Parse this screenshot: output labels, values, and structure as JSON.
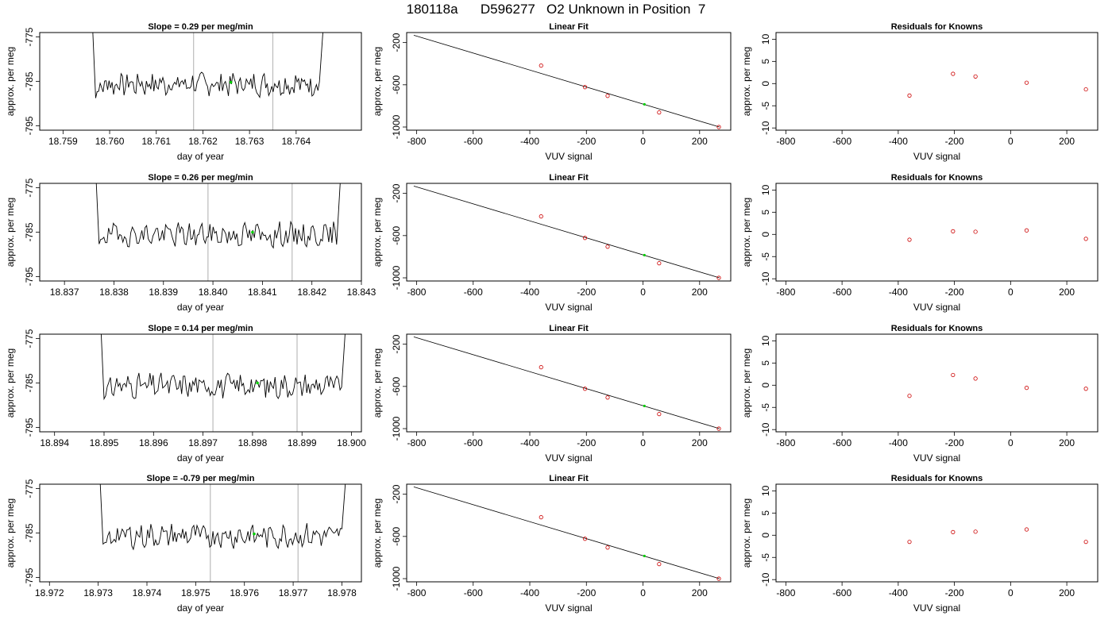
{
  "page_title": "180118a      D596277   O2 Unknown in Position  7",
  "colors": {
    "trace": "#000000",
    "known_marker": "#cc0000",
    "unknown_marker": "#00cc00",
    "marker_line": "#bbbbbb",
    "frame": "#000000"
  },
  "chart_data": [
    {
      "type": "line",
      "title": "Slope =  0.29  per meg/min",
      "xlabel": "day of year",
      "ylabel": "approx. per meg",
      "xlim": [
        18.7585,
        18.7654
      ],
      "ylim": [
        -796,
        -774
      ],
      "xticks": [
        "18.759",
        "18.760",
        "18.761",
        "18.762",
        "18.763",
        "18.764"
      ],
      "yticks": [
        "-775",
        "-785",
        "-795"
      ],
      "vlines": [
        18.7618,
        18.7635
      ],
      "trace_x_range": [
        18.7597,
        18.7645
      ],
      "trace_base": -785.6,
      "unknown_point": {
        "x": 18.7626,
        "y": -785.2
      },
      "seed": 7
    },
    {
      "type": "line",
      "title": "Linear Fit",
      "xlabel": "VUV signal",
      "ylabel": "approx. per meg",
      "xlim": [
        -835,
        310
      ],
      "ylim": [
        -1030,
        -105
      ],
      "xticks": [
        "-800",
        "-600",
        "-400",
        "-200",
        "0",
        "200"
      ],
      "yticks": [
        "-200",
        "-600",
        "-1000"
      ],
      "fit_line": {
        "x": [
          -810,
          270
        ],
        "y": [
          -130,
          -1000
        ]
      },
      "knowns": {
        "x": [
          -360,
          -205,
          -125,
          57,
          268
        ],
        "y": [
          -418,
          -622,
          -705,
          -862,
          -1000
        ]
      },
      "unknown": {
        "x": 5,
        "y": -785
      }
    },
    {
      "type": "scatter",
      "title": "Residuals for Knowns",
      "xlabel": "VUV signal",
      "ylabel": "approx. per meg",
      "xlim": [
        -835,
        310
      ],
      "ylim": [
        -10.5,
        11.5
      ],
      "xticks": [
        "-800",
        "-600",
        "-400",
        "-200",
        "0",
        "200"
      ],
      "yticks": [
        "10",
        "5",
        "0",
        "-5",
        "-10"
      ],
      "points": {
        "x": [
          -360,
          -205,
          -125,
          57,
          268
        ],
        "y": [
          -2.7,
          2.2,
          1.6,
          0.2,
          -1.3
        ]
      }
    },
    {
      "type": "line",
      "title": "Slope =  0.26  per meg/min",
      "xlabel": "day of year",
      "ylabel": "approx. per meg",
      "xlim": [
        18.8365,
        18.843
      ],
      "ylim": [
        -796,
        -774
      ],
      "xticks": [
        "18.837",
        "18.838",
        "18.839",
        "18.840",
        "18.841",
        "18.842",
        "18.843"
      ],
      "yticks": [
        "-775",
        "-785",
        "-795"
      ],
      "vlines": [
        18.8399,
        18.8416
      ],
      "trace_x_range": [
        18.8377,
        18.8425
      ],
      "trace_base": -785.6,
      "unknown_point": {
        "x": 18.8408,
        "y": -785.0
      },
      "seed": 19
    },
    {
      "type": "line",
      "title": "Linear Fit",
      "xlabel": "VUV signal",
      "ylabel": "approx. per meg",
      "xlim": [
        -835,
        310
      ],
      "ylim": [
        -1030,
        -105
      ],
      "xticks": [
        "-800",
        "-600",
        "-400",
        "-200",
        "0",
        "200"
      ],
      "yticks": [
        "-200",
        "-600",
        "-1000"
      ],
      "fit_line": {
        "x": [
          -810,
          270
        ],
        "y": [
          -130,
          -1000
        ]
      },
      "knowns": {
        "x": [
          -360,
          -205,
          -125,
          57,
          268
        ],
        "y": [
          -418,
          -622,
          -705,
          -862,
          -1000
        ]
      },
      "unknown": {
        "x": 5,
        "y": -785
      }
    },
    {
      "type": "scatter",
      "title": "Residuals for Knowns",
      "xlabel": "VUV signal",
      "ylabel": "approx. per meg",
      "xlim": [
        -835,
        310
      ],
      "ylim": [
        -10.5,
        11.5
      ],
      "xticks": [
        "-800",
        "-600",
        "-400",
        "-200",
        "0",
        "200"
      ],
      "yticks": [
        "10",
        "5",
        "0",
        "-5",
        "-10"
      ],
      "points": {
        "x": [
          -360,
          -205,
          -125,
          57,
          268
        ],
        "y": [
          -1.2,
          0.7,
          0.6,
          0.9,
          -1.0
        ]
      }
    },
    {
      "type": "line",
      "title": "Slope =  0.14  per meg/min",
      "xlabel": "day of year",
      "ylabel": "approx. per meg",
      "xlim": [
        18.8937,
        18.9002
      ],
      "ylim": [
        -796,
        -774
      ],
      "xticks": [
        "18.894",
        "18.895",
        "18.896",
        "18.897",
        "18.898",
        "18.899",
        "18.900"
      ],
      "yticks": [
        "-775",
        "-785",
        "-795"
      ],
      "vlines": [
        18.8972,
        18.8989
      ],
      "trace_x_range": [
        18.895,
        18.8998
      ],
      "trace_base": -785.6,
      "unknown_point": {
        "x": 18.8981,
        "y": -785.0
      },
      "seed": 31
    },
    {
      "type": "line",
      "title": "Linear Fit",
      "xlabel": "VUV signal",
      "ylabel": "approx. per meg",
      "xlim": [
        -835,
        310
      ],
      "ylim": [
        -1030,
        -105
      ],
      "xticks": [
        "-800",
        "-600",
        "-400",
        "-200",
        "0",
        "200"
      ],
      "yticks": [
        "-200",
        "-600",
        "-1000"
      ],
      "fit_line": {
        "x": [
          -810,
          270
        ],
        "y": [
          -130,
          -1000
        ]
      },
      "knowns": {
        "x": [
          -360,
          -205,
          -125,
          57,
          268
        ],
        "y": [
          -418,
          -622,
          -705,
          -862,
          -1000
        ]
      },
      "unknown": {
        "x": 5,
        "y": -785
      }
    },
    {
      "type": "scatter",
      "title": "Residuals for Knowns",
      "xlabel": "VUV signal",
      "ylabel": "approx. per meg",
      "xlim": [
        -835,
        310
      ],
      "ylim": [
        -10.5,
        11.5
      ],
      "xticks": [
        "-800",
        "-600",
        "-400",
        "-200",
        "0",
        "200"
      ],
      "yticks": [
        "10",
        "5",
        "0",
        "-5",
        "-10"
      ],
      "points": {
        "x": [
          -360,
          -205,
          -125,
          57,
          268
        ],
        "y": [
          -2.4,
          2.3,
          1.5,
          -0.6,
          -0.8
        ]
      }
    },
    {
      "type": "line",
      "title": "Slope =  -0.79  per meg/min",
      "xlabel": "day of year",
      "ylabel": "approx. per meg",
      "xlim": [
        18.9718,
        18.9784
      ],
      "ylim": [
        -796,
        -774
      ],
      "xticks": [
        "18.972",
        "18.973",
        "18.974",
        "18.975",
        "18.976",
        "18.977",
        "18.978"
      ],
      "yticks": [
        "-775",
        "-785",
        "-795"
      ],
      "vlines": [
        18.9753,
        18.9771
      ],
      "trace_x_range": [
        18.9731,
        18.978
      ],
      "trace_base": -785.6,
      "unknown_point": {
        "x": 18.9762,
        "y": -785.2
      },
      "seed": 43
    },
    {
      "type": "line",
      "title": "Linear Fit",
      "xlabel": "VUV signal",
      "ylabel": "approx. per meg",
      "xlim": [
        -835,
        310
      ],
      "ylim": [
        -1030,
        -105
      ],
      "xticks": [
        "-800",
        "-600",
        "-400",
        "-200",
        "0",
        "200"
      ],
      "yticks": [
        "-200",
        "-600",
        "-1000"
      ],
      "fit_line": {
        "x": [
          -810,
          270
        ],
        "y": [
          -130,
          -1000
        ]
      },
      "knowns": {
        "x": [
          -360,
          -205,
          -125,
          57,
          268
        ],
        "y": [
          -418,
          -622,
          -705,
          -862,
          -1000
        ]
      },
      "unknown": {
        "x": 5,
        "y": -785
      }
    },
    {
      "type": "scatter",
      "title": "Residuals for Knowns",
      "xlabel": "VUV signal",
      "ylabel": "approx. per meg",
      "xlim": [
        -835,
        310
      ],
      "ylim": [
        -10.5,
        11.5
      ],
      "xticks": [
        "-800",
        "-600",
        "-400",
        "-200",
        "0",
        "200"
      ],
      "yticks": [
        "10",
        "5",
        "0",
        "-5",
        "-10"
      ],
      "points": {
        "x": [
          -360,
          -205,
          -125,
          57,
          268
        ],
        "y": [
          -1.5,
          0.7,
          0.8,
          1.3,
          -1.5
        ]
      }
    }
  ]
}
